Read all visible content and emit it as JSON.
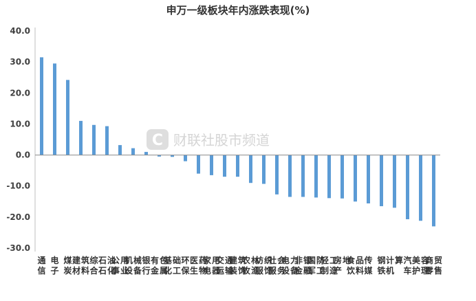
{
  "chart_data": {
    "type": "bar",
    "title": "申万一级板块年内涨跌表现(%)",
    "ylim": [
      -30,
      40
    ],
    "yticks": [
      "40.0",
      "30.0",
      "20.0",
      "10.0",
      "0.0",
      "-10.0",
      "-20.0",
      "-30.0"
    ],
    "grid": false,
    "bar_color": "#5b9bd5",
    "categories": [
      "通信",
      "电子",
      "煤炭",
      "建筑材料",
      "综合",
      "石油石化",
      "公用事业",
      "机械设备",
      "银行",
      "有色金属",
      "基础化工",
      "环保",
      "医药生物",
      "家用电器",
      "交通运输",
      "建筑装饰",
      "农林牧渔",
      "纺织服饰",
      "社会服务",
      "电力设备",
      "非银金融",
      "国防军工",
      "轻工制造",
      "房地产",
      "食品饮料",
      "传媒",
      "钢铁",
      "计算机",
      "汽车",
      "美容护理",
      "商贸零售"
    ],
    "values": [
      31.5,
      29.5,
      24.2,
      11.0,
      9.7,
      9.3,
      3.2,
      2.2,
      1.0,
      -0.5,
      -0.6,
      -2.0,
      -6.0,
      -6.5,
      -7.0,
      -7.0,
      -9.0,
      -9.3,
      -12.7,
      -13.5,
      -13.5,
      -13.7,
      -13.9,
      -14.0,
      -15.0,
      -15.6,
      -16.5,
      -17.0,
      -20.7,
      -21.2,
      -23.0
    ]
  },
  "watermark": {
    "logo_glyph": "C",
    "text": "财联社股市频道",
    "color": "#d5d5d5"
  }
}
